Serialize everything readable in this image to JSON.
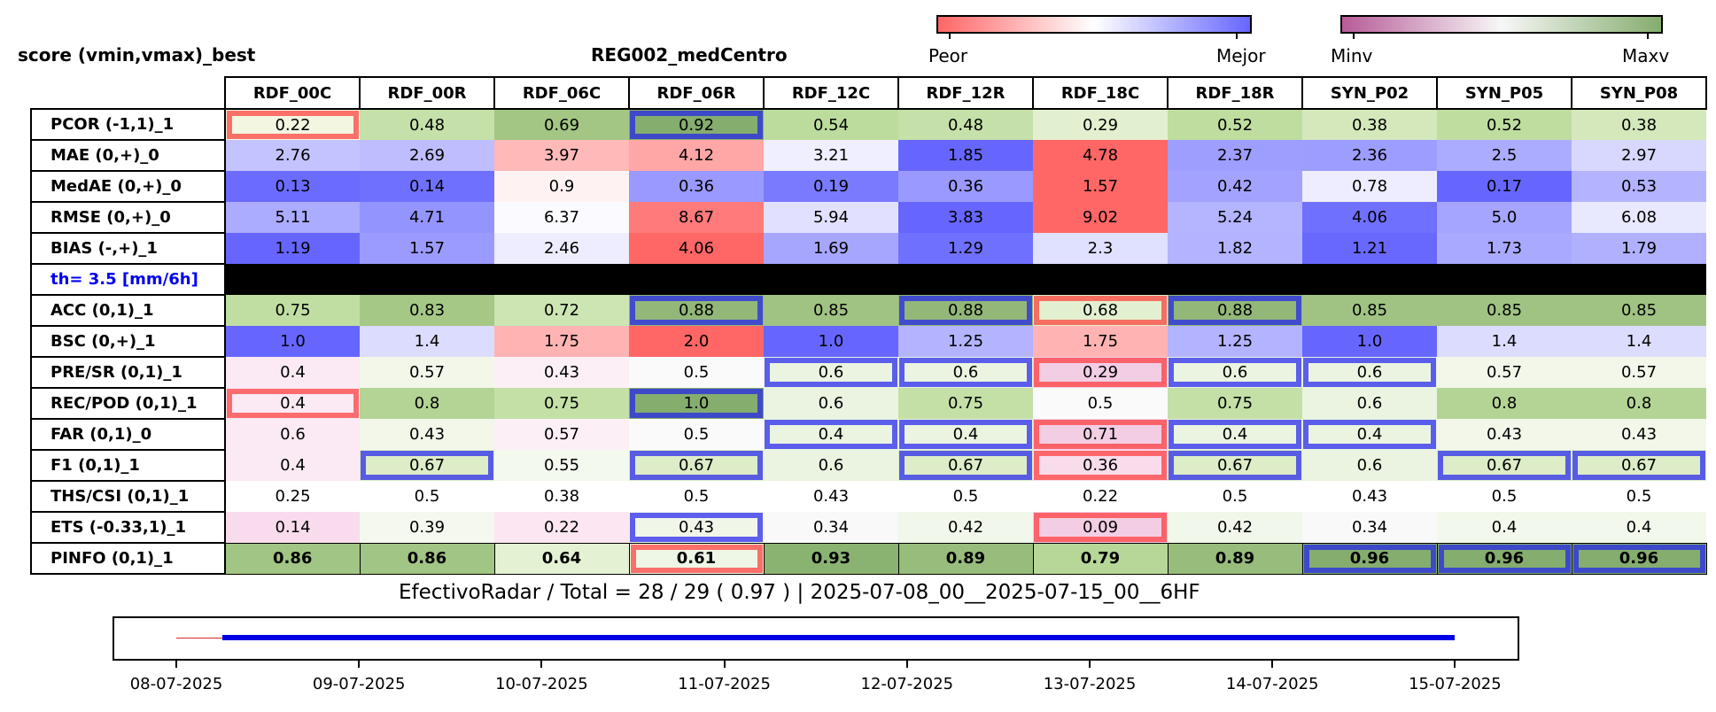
{
  "header": {
    "left_title": "score (vmin,vmax)_best",
    "center_title": "REG002_medCentro"
  },
  "colorbars": [
    {
      "name": "score",
      "low_label": "Peor",
      "high_label": "Mejor",
      "colors": [
        "#ff6666",
        "#ffffff",
        "#6666ff"
      ]
    },
    {
      "name": "value",
      "low_label": "Minv",
      "high_label": "Maxv",
      "colors": [
        "#b85c99",
        "#f7f7f7",
        "#85ad6e"
      ]
    }
  ],
  "columns": [
    "RDF_00C",
    "RDF_00R",
    "RDF_06C",
    "RDF_06R",
    "RDF_12C",
    "RDF_12R",
    "RDF_18C",
    "RDF_18R",
    "SYN_P02",
    "SYN_P05",
    "SYN_P08"
  ],
  "rows": [
    {
      "label": "PCOR (-1,1)_1",
      "cells": [
        {
          "v": "0.22",
          "bg": "#f3f6e1",
          "hl": "red"
        },
        {
          "v": "0.48",
          "bg": "#c5e0a9"
        },
        {
          "v": "0.69",
          "bg": "#a3c685"
        },
        {
          "v": "0.92",
          "bg": "#85ad6e",
          "hl": "blue"
        },
        {
          "v": "0.54",
          "bg": "#bcdc9e"
        },
        {
          "v": "0.48",
          "bg": "#c5e0a9"
        },
        {
          "v": "0.29",
          "bg": "#e2f0cf"
        },
        {
          "v": "0.52",
          "bg": "#bfdd9f"
        },
        {
          "v": "0.38",
          "bg": "#d4e8bc"
        },
        {
          "v": "0.52",
          "bg": "#bfdd9f"
        },
        {
          "v": "0.38",
          "bg": "#d4e8bc"
        }
      ]
    },
    {
      "label": "MAE (0,+)_0",
      "cells": [
        {
          "v": "2.76",
          "bg": "#c3c3ff"
        },
        {
          "v": "2.69",
          "bg": "#bebeff"
        },
        {
          "v": "3.97",
          "bg": "#ffb9b9"
        },
        {
          "v": "4.12",
          "bg": "#ffa6a6"
        },
        {
          "v": "3.21",
          "bg": "#efefff"
        },
        {
          "v": "1.85",
          "bg": "#6666ff"
        },
        {
          "v": "4.78",
          "bg": "#ff6666"
        },
        {
          "v": "2.37",
          "bg": "#9e9eff"
        },
        {
          "v": "2.36",
          "bg": "#9d9dff"
        },
        {
          "v": "2.5",
          "bg": "#ababff"
        },
        {
          "v": "2.97",
          "bg": "#d8d8ff"
        }
      ]
    },
    {
      "label": "MedAE (0,+)_0",
      "cells": [
        {
          "v": "0.13",
          "bg": "#6b6bff"
        },
        {
          "v": "0.14",
          "bg": "#7070ff"
        },
        {
          "v": "0.9",
          "bg": "#fff2f2"
        },
        {
          "v": "0.36",
          "bg": "#9999ff"
        },
        {
          "v": "0.19",
          "bg": "#7a7aff"
        },
        {
          "v": "0.36",
          "bg": "#9999ff"
        },
        {
          "v": "1.57",
          "bg": "#ff6666"
        },
        {
          "v": "0.42",
          "bg": "#a3a3ff"
        },
        {
          "v": "0.78",
          "bg": "#ededff"
        },
        {
          "v": "0.17",
          "bg": "#6666ff"
        },
        {
          "v": "0.53",
          "bg": "#b3b3ff"
        }
      ]
    },
    {
      "label": "RMSE (0,+)_0",
      "cells": [
        {
          "v": "5.11",
          "bg": "#ababff"
        },
        {
          "v": "4.71",
          "bg": "#9494ff"
        },
        {
          "v": "6.37",
          "bg": "#fbfbff"
        },
        {
          "v": "8.67",
          "bg": "#ff7a7a"
        },
        {
          "v": "5.94",
          "bg": "#e1e1ff"
        },
        {
          "v": "3.83",
          "bg": "#6666ff"
        },
        {
          "v": "9.02",
          "bg": "#ff6666"
        },
        {
          "v": "5.24",
          "bg": "#b4b4ff"
        },
        {
          "v": "4.06",
          "bg": "#7070ff"
        },
        {
          "v": "5.0",
          "bg": "#a5a5ff"
        },
        {
          "v": "6.08",
          "bg": "#e8e8ff"
        }
      ]
    },
    {
      "label": "BIAS (-,+)_1",
      "cells": [
        {
          "v": "1.19",
          "bg": "#6666ff"
        },
        {
          "v": "1.57",
          "bg": "#9b9bff"
        },
        {
          "v": "2.46",
          "bg": "#ededff"
        },
        {
          "v": "4.06",
          "bg": "#ff6666"
        },
        {
          "v": "1.69",
          "bg": "#a6a6ff"
        },
        {
          "v": "1.29",
          "bg": "#7070ff"
        },
        {
          "v": "2.3",
          "bg": "#e0e0ff"
        },
        {
          "v": "1.82",
          "bg": "#b3b3ff"
        },
        {
          "v": "1.21",
          "bg": "#6868ff"
        },
        {
          "v": "1.73",
          "bg": "#a9a9ff"
        },
        {
          "v": "1.79",
          "bg": "#b0b0ff"
        }
      ]
    },
    {
      "label": "th= 3.5 [mm/6h]",
      "threshold": true,
      "cells": []
    },
    {
      "label": "ACC (0,1)_1",
      "cells": [
        {
          "v": "0.75",
          "bg": "#c0dea2"
        },
        {
          "v": "0.83",
          "bg": "#a6c887"
        },
        {
          "v": "0.72",
          "bg": "#cce5b3"
        },
        {
          "v": "0.88",
          "bg": "#92b779",
          "hl": "blue"
        },
        {
          "v": "0.85",
          "bg": "#a0c383"
        },
        {
          "v": "0.88",
          "bg": "#92b779",
          "hl": "blue"
        },
        {
          "v": "0.68",
          "bg": "#e2f0cf",
          "hl": "red"
        },
        {
          "v": "0.88",
          "bg": "#92b779",
          "hl": "blue"
        },
        {
          "v": "0.85",
          "bg": "#a0c383"
        },
        {
          "v": "0.85",
          "bg": "#a0c383"
        },
        {
          "v": "0.85",
          "bg": "#a0c383"
        }
      ]
    },
    {
      "label": "BSC (0,+)_1",
      "cells": [
        {
          "v": "1.0",
          "bg": "#6666ff"
        },
        {
          "v": "1.4",
          "bg": "#dcdcff"
        },
        {
          "v": "1.75",
          "bg": "#ffb3b3"
        },
        {
          "v": "2.0",
          "bg": "#ff6666"
        },
        {
          "v": "1.0",
          "bg": "#6666ff"
        },
        {
          "v": "1.25",
          "bg": "#b3b3ff"
        },
        {
          "v": "1.75",
          "bg": "#ffb3b3"
        },
        {
          "v": "1.25",
          "bg": "#b3b3ff"
        },
        {
          "v": "1.0",
          "bg": "#6666ff"
        },
        {
          "v": "1.4",
          "bg": "#dcdcff"
        },
        {
          "v": "1.4",
          "bg": "#dcdcff"
        }
      ]
    },
    {
      "label": "PRE/SR (0,1)_1",
      "cells": [
        {
          "v": "0.4",
          "bg": "#fbe9f3"
        },
        {
          "v": "0.57",
          "bg": "#f2f7ea"
        },
        {
          "v": "0.43",
          "bg": "#fcf0f6"
        },
        {
          "v": "0.5",
          "bg": "#fafafa"
        },
        {
          "v": "0.6",
          "bg": "#eaf4e0",
          "hl": "blue"
        },
        {
          "v": "0.6",
          "bg": "#eaf4e0",
          "hl": "blue"
        },
        {
          "v": "0.29",
          "bg": "#f2cde3",
          "hl": "red"
        },
        {
          "v": "0.6",
          "bg": "#eaf4e0",
          "hl": "blue"
        },
        {
          "v": "0.6",
          "bg": "#eaf4e0",
          "hl": "blue"
        },
        {
          "v": "0.57",
          "bg": "#f2f7ea"
        },
        {
          "v": "0.57",
          "bg": "#f2f7ea"
        }
      ]
    },
    {
      "label": "REC/POD (0,1)_1",
      "cells": [
        {
          "v": "0.4",
          "bg": "#fbe9f3",
          "hl": "red"
        },
        {
          "v": "0.8",
          "bg": "#b3d495"
        },
        {
          "v": "0.75",
          "bg": "#c4e0a7"
        },
        {
          "v": "1.0",
          "bg": "#85ad6e",
          "hl": "blue"
        },
        {
          "v": "0.6",
          "bg": "#eaf4e0"
        },
        {
          "v": "0.75",
          "bg": "#c4e0a7"
        },
        {
          "v": "0.5",
          "bg": "#fafafa"
        },
        {
          "v": "0.75",
          "bg": "#c4e0a7"
        },
        {
          "v": "0.6",
          "bg": "#eaf4e0"
        },
        {
          "v": "0.8",
          "bg": "#b3d495"
        },
        {
          "v": "0.8",
          "bg": "#b3d495"
        }
      ]
    },
    {
      "label": "FAR (0,1)_0",
      "cells": [
        {
          "v": "0.6",
          "bg": "#fbe9f3"
        },
        {
          "v": "0.43",
          "bg": "#f2f7ea"
        },
        {
          "v": "0.57",
          "bg": "#fcf0f6"
        },
        {
          "v": "0.5",
          "bg": "#fafafa"
        },
        {
          "v": "0.4",
          "bg": "#eaf4e0",
          "hl": "blue"
        },
        {
          "v": "0.4",
          "bg": "#eaf4e0",
          "hl": "blue"
        },
        {
          "v": "0.71",
          "bg": "#f2cde3",
          "hl": "red"
        },
        {
          "v": "0.4",
          "bg": "#eaf4e0",
          "hl": "blue"
        },
        {
          "v": "0.4",
          "bg": "#eaf4e0",
          "hl": "blue"
        },
        {
          "v": "0.43",
          "bg": "#f2f7ea"
        },
        {
          "v": "0.43",
          "bg": "#f2f7ea"
        }
      ]
    },
    {
      "label": "F1 (0,1)_1",
      "cells": [
        {
          "v": "0.4",
          "bg": "#fbe9f3"
        },
        {
          "v": "0.67",
          "bg": "#dcedc7",
          "hl": "blue"
        },
        {
          "v": "0.55",
          "bg": "#f4f9ee"
        },
        {
          "v": "0.67",
          "bg": "#dcedc7",
          "hl": "blue"
        },
        {
          "v": "0.6",
          "bg": "#eaf4e0"
        },
        {
          "v": "0.67",
          "bg": "#dcedc7",
          "hl": "blue"
        },
        {
          "v": "0.36",
          "bg": "#f8dcec",
          "hl": "red"
        },
        {
          "v": "0.67",
          "bg": "#dcedc7",
          "hl": "blue"
        },
        {
          "v": "0.6",
          "bg": "#eaf4e0"
        },
        {
          "v": "0.67",
          "bg": "#dcedc7",
          "hl": "blue"
        },
        {
          "v": "0.67",
          "bg": "#dcedc7",
          "hl": "blue"
        }
      ]
    },
    {
      "label": "THS/CSI (0,1)_1",
      "cells": [
        {
          "v": "0.25",
          "bg": "#ffffff"
        },
        {
          "v": "0.5",
          "bg": "#ffffff"
        },
        {
          "v": "0.38",
          "bg": "#ffffff"
        },
        {
          "v": "0.5",
          "bg": "#ffffff"
        },
        {
          "v": "0.43",
          "bg": "#ffffff"
        },
        {
          "v": "0.5",
          "bg": "#ffffff"
        },
        {
          "v": "0.22",
          "bg": "#ffffff"
        },
        {
          "v": "0.5",
          "bg": "#ffffff"
        },
        {
          "v": "0.43",
          "bg": "#ffffff"
        },
        {
          "v": "0.5",
          "bg": "#ffffff"
        },
        {
          "v": "0.5",
          "bg": "#ffffff"
        }
      ]
    },
    {
      "label": "ETS (-0.33,1)_1",
      "cells": [
        {
          "v": "0.14",
          "bg": "#f8dced"
        },
        {
          "v": "0.39",
          "bg": "#f4f8ee"
        },
        {
          "v": "0.22",
          "bg": "#fbe6f1"
        },
        {
          "v": "0.43",
          "bg": "#f0f6e8",
          "hl": "blue"
        },
        {
          "v": "0.34",
          "bg": "#f9f9f9"
        },
        {
          "v": "0.42",
          "bg": "#f1f7ea"
        },
        {
          "v": "0.09",
          "bg": "#f2cde3",
          "hl": "red"
        },
        {
          "v": "0.42",
          "bg": "#f1f7ea"
        },
        {
          "v": "0.34",
          "bg": "#f9f9f9"
        },
        {
          "v": "0.4",
          "bg": "#f3f8ec"
        },
        {
          "v": "0.4",
          "bg": "#f3f8ec"
        }
      ]
    },
    {
      "label": "PINFO (0,1)_1",
      "pinfo": true,
      "cells": [
        {
          "v": "0.86",
          "bg": "#a1c584"
        },
        {
          "v": "0.86",
          "bg": "#a1c584"
        },
        {
          "v": "0.64",
          "bg": "#e4f2d3"
        },
        {
          "v": "0.61",
          "bg": "#eef7e5",
          "hl": "red"
        },
        {
          "v": "0.93",
          "bg": "#8ab372"
        },
        {
          "v": "0.89",
          "bg": "#97bc7c"
        },
        {
          "v": "0.79",
          "bg": "#b6d797"
        },
        {
          "v": "0.89",
          "bg": "#97bc7c"
        },
        {
          "v": "0.96",
          "bg": "#85ad6e",
          "hl": "blue"
        },
        {
          "v": "0.96",
          "bg": "#85ad6e",
          "hl": "blue"
        },
        {
          "v": "0.96",
          "bg": "#85ad6e",
          "hl": "blue"
        }
      ]
    }
  ],
  "footer": {
    "text": "EfectivoRadar / Total  =  28 / 29 ( 0.97 ) | 2025-07-08_00__2025-07-15_00__6HF"
  },
  "timeline": {
    "dates": [
      "08-07-2025",
      "09-07-2025",
      "10-07-2025",
      "11-07-2025",
      "12-07-2025",
      "13-07-2025",
      "14-07-2025",
      "15-07-2025"
    ],
    "missing_segment": {
      "start": "2025-07-08 00:00",
      "end": "2025-07-08 06:00",
      "color": "#d62728"
    },
    "available_segment": {
      "start": "2025-07-08 06:00",
      "end": "2025-07-15 00:00",
      "color": "#0000e6"
    }
  },
  "highlight_colors": {
    "red": "rgba(255,40,40,0.65)",
    "blue": "rgba(30,30,240,0.7)"
  }
}
